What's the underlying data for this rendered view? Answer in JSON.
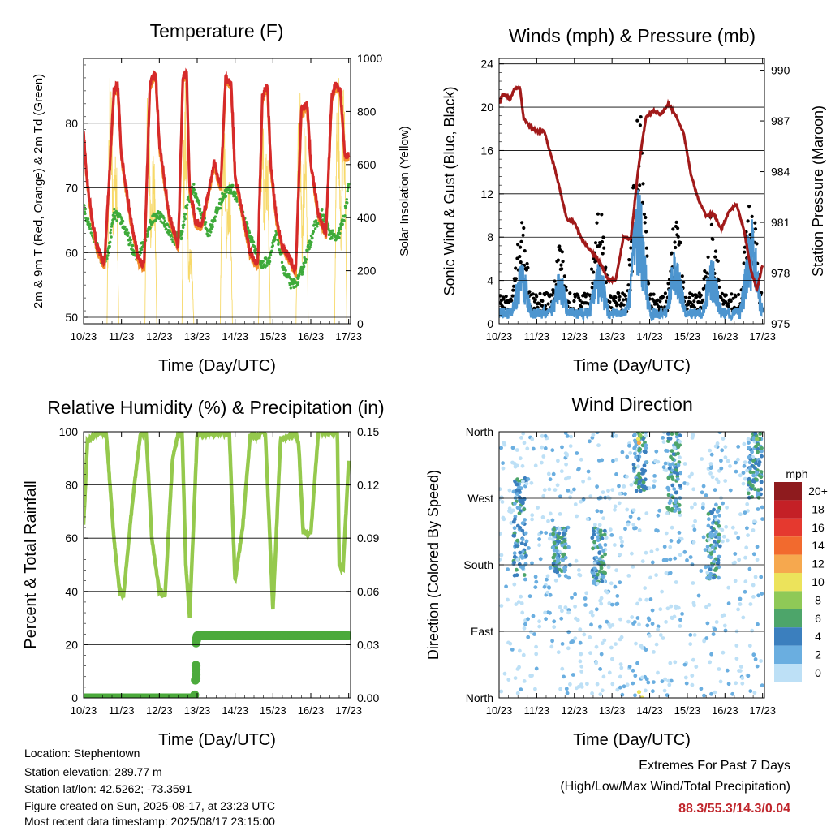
{
  "colors": {
    "temp2m": "#d62a2a",
    "temp9m": "#f28c28",
    "dew": "#3eaa3a",
    "solar": "#f7d96a",
    "wind": "#4d95cf",
    "gust": "#000000",
    "pressure": "#a11a1a",
    "rh": "#95c94d",
    "precip": "#4caa3c",
    "extremes": "#c0262c"
  },
  "x_ticks": [
    "10/23",
    "11/23",
    "12/23",
    "13/23",
    "14/23",
    "15/23",
    "16/23",
    "17/23"
  ],
  "chart_data": [
    {
      "id": "temperature",
      "type": "line",
      "title": "Temperature (F)",
      "xlabel": "Time (Day/UTC)",
      "ylabel": "2m & 9m T (Red, Orange) & 2m Td (Green)",
      "ylabel_right": "Solar Insolation (Yellow)",
      "ylim": [
        49,
        90
      ],
      "yticks": [
        50,
        60,
        70,
        80
      ],
      "ylim_right": [
        0,
        1000
      ],
      "yticks_right": [
        0,
        200,
        400,
        600,
        800,
        1000
      ],
      "xlim": [
        0,
        7.05
      ],
      "grid": true,
      "series": [
        {
          "key": "t2m",
          "axis": "left",
          "x": [
            0,
            0.08,
            0.2,
            0.35,
            0.55,
            0.8,
            0.9,
            1.0,
            1.25,
            1.45,
            1.6,
            1.75,
            1.9,
            2.0,
            2.25,
            2.5,
            2.62,
            2.72,
            2.8,
            2.95,
            3.1,
            3.25,
            3.45,
            3.62,
            3.75,
            3.9,
            4.0,
            4.2,
            4.4,
            4.6,
            4.72,
            4.85,
            4.95,
            5.1,
            5.25,
            5.45,
            5.6,
            5.75,
            5.9,
            6.0,
            6.2,
            6.4,
            6.55,
            6.65,
            6.78,
            6.9,
            7.0
          ],
          "y": [
            79,
            72,
            66,
            61,
            58,
            85,
            86,
            75,
            65,
            59,
            58,
            86,
            88,
            77,
            66,
            61,
            87,
            88,
            70,
            65,
            64,
            68,
            74,
            70,
            87,
            86,
            72,
            66,
            60,
            58,
            84,
            86,
            73,
            65,
            61,
            59,
            57,
            82,
            83,
            74,
            66,
            63,
            84,
            86,
            85,
            75,
            75
          ]
        },
        {
          "key": "dew",
          "axis": "left",
          "x": [
            0,
            0.1,
            0.3,
            0.5,
            0.65,
            0.8,
            1.0,
            1.2,
            1.4,
            1.6,
            1.8,
            2.0,
            2.2,
            2.4,
            2.6,
            2.75,
            2.9,
            3.1,
            3.3,
            3.5,
            3.7,
            3.9,
            4.1,
            4.3,
            4.5,
            4.7,
            4.9,
            5.1,
            5.3,
            5.5,
            5.7,
            5.9,
            6.1,
            6.3,
            6.5,
            6.7,
            6.9,
            7.0
          ],
          "y": [
            67,
            65,
            62,
            58,
            60,
            66,
            65,
            62,
            59,
            62,
            65,
            66,
            64,
            62,
            63,
            68,
            70,
            66,
            63,
            66,
            69,
            70,
            68,
            64,
            61,
            58,
            59,
            63,
            57,
            55,
            56,
            60,
            64,
            66,
            63,
            62,
            66,
            70
          ]
        },
        {
          "key": "solar",
          "axis": "right",
          "peaks": [
            0.71,
            0.84,
            1.71,
            1.84,
            2.69,
            2.82,
            3.7,
            3.84,
            4.71,
            4.84,
            5.7,
            5.84,
            6.72,
            6.86
          ],
          "peak_values": [
            960,
            720,
            950,
            700,
            940,
            300,
            860,
            620,
            880,
            700,
            900,
            780,
            980,
            900
          ]
        }
      ]
    },
    {
      "id": "winds",
      "type": "scatter",
      "title": "Winds (mph) & Pressure (mb)",
      "xlabel": "Time (Day/UTC)",
      "ylabel": "Sonic Wind & Gust (Blue, Black)",
      "ylabel_right": "Station Pressure (Maroon)",
      "ylim": [
        0,
        24.5
      ],
      "yticks": [
        0,
        4,
        8,
        12,
        16,
        20,
        24
      ],
      "ylim_right": [
        975,
        990.7
      ],
      "yticks_right": [
        975,
        978,
        981,
        984,
        987,
        990
      ],
      "xlim": [
        0,
        7.05
      ],
      "grid": true,
      "series": [
        {
          "key": "pressure",
          "axis": "right",
          "x": [
            0,
            0.1,
            0.3,
            0.4,
            0.55,
            0.65,
            0.8,
            1.0,
            1.2,
            1.5,
            1.8,
            2.0,
            2.2,
            2.4,
            2.6,
            2.75,
            2.9,
            3.1,
            3.3,
            3.5,
            3.7,
            3.9,
            4.1,
            4.3,
            4.5,
            4.7,
            4.9,
            5.1,
            5.3,
            5.5,
            5.7,
            5.9,
            6.1,
            6.3,
            6.5,
            6.7,
            6.85,
            7.0
          ],
          "y": [
            988,
            988.6,
            988.3,
            988.9,
            989.0,
            987.2,
            986.7,
            986.4,
            986.4,
            984.0,
            981.2,
            981.0,
            980.0,
            979.4,
            978.9,
            978.3,
            977.6,
            977.6,
            980.1,
            980.0,
            984.2,
            987.2,
            987.6,
            987.4,
            988.0,
            987.3,
            986.3,
            983.8,
            982.3,
            981.4,
            981.5,
            980.6,
            981.6,
            982.1,
            980.6,
            978.1,
            977.0,
            978.5
          ]
        },
        {
          "key": "wind_centers",
          "axis": "left",
          "centers": [
            0.6,
            1.6,
            2.65,
            3.7,
            4.7,
            5.65,
            6.7
          ],
          "peak_wind": [
            6,
            5,
            6,
            13,
            7,
            6,
            10
          ],
          "peak_gust": [
            10,
            8,
            12,
            22,
            11,
            11,
            14
          ]
        }
      ]
    },
    {
      "id": "humidity",
      "type": "line",
      "title": "Relative Humidity (%) & Precipitation (in)",
      "xlabel": "Time (Day/UTC)",
      "ylabel": "Percent & Total Rainfall",
      "ylim": [
        0,
        100
      ],
      "yticks": [
        0,
        20,
        40,
        60,
        80,
        100
      ],
      "ylim_right": [
        0,
        0.15
      ],
      "yticks_right": [
        "0.00",
        "0.03",
        "0.06",
        "0.09",
        "0.12",
        "0.15"
      ],
      "xlim": [
        0,
        7.05
      ],
      "grid": true,
      "series": [
        {
          "key": "rh",
          "axis": "left",
          "x": [
            0,
            0.1,
            0.3,
            0.5,
            0.6,
            0.8,
            0.95,
            1.05,
            1.3,
            1.5,
            1.65,
            1.8,
            2.0,
            2.15,
            2.35,
            2.5,
            2.6,
            2.7,
            2.8,
            3.0,
            3.2,
            3.3,
            3.45,
            3.65,
            3.75,
            3.85,
            4.0,
            4.2,
            4.4,
            4.6,
            4.72,
            4.8,
            5.0,
            5.2,
            5.4,
            5.6,
            5.68,
            5.8,
            6.0,
            6.2,
            6.4,
            6.6,
            6.7,
            6.75,
            6.85,
            7.0
          ],
          "y": [
            65,
            96,
            99,
            100,
            99,
            60,
            40,
            38,
            75,
            99,
            100,
            60,
            40,
            38,
            90,
            99,
            100,
            50,
            30,
            99,
            99,
            100,
            99,
            100,
            100,
            99,
            44,
            64,
            99,
            98,
            100,
            99,
            33,
            97,
            98,
            100,
            95,
            62,
            62,
            100,
            100,
            100,
            100,
            50,
            48,
            89
          ]
        },
        {
          "key": "precip",
          "axis": "right",
          "x": [
            0,
            2.93,
            2.95,
            2.96,
            2.97,
            2.98,
            3.0,
            7.0
          ],
          "y": [
            0.0,
            0.0,
            0.01,
            0.015,
            0.02,
            0.032,
            0.035,
            0.035
          ]
        }
      ]
    },
    {
      "id": "direction",
      "type": "scatter",
      "title": "Wind Direction",
      "xlabel": "Time (Day/UTC)",
      "ylabel": "Direction (Colored By Speed)",
      "ylim": [
        0,
        360
      ],
      "ytick_labels": [
        "North",
        "East",
        "South",
        "West",
        "North"
      ],
      "yticks": [
        0,
        90,
        180,
        270,
        360
      ],
      "xlim": [
        0,
        7.05
      ],
      "grid": true,
      "colorbar": {
        "title": "mph",
        "labels": [
          "20+",
          "18",
          "16",
          "14",
          "12",
          "10",
          "8",
          "6",
          "4",
          "2",
          "0"
        ],
        "colors": [
          "#8e1b1e",
          "#c42026",
          "#e5392f",
          "#f26a2e",
          "#f6a84e",
          "#ece35b",
          "#8fc957",
          "#4da56a",
          "#3b7fbe",
          "#6aaee0",
          "#bde0f6"
        ]
      }
    }
  ],
  "info": {
    "location": "Location: Stephentown",
    "elevation": "Station elevation: 289.77 m",
    "latlon": "Station lat/lon: 42.5262; -73.3591",
    "created": "Figure created on Sun, 2025-08-17, at 23:23 UTC",
    "recent": "Most recent data timestamp: 2025/08/17 23:15:00"
  },
  "extremes": {
    "line1": "Extremes For Past 7 Days",
    "line2": "(High/Low/Max Wind/Total Precipitation)",
    "values": "88.3/55.3/14.3/0.04"
  }
}
